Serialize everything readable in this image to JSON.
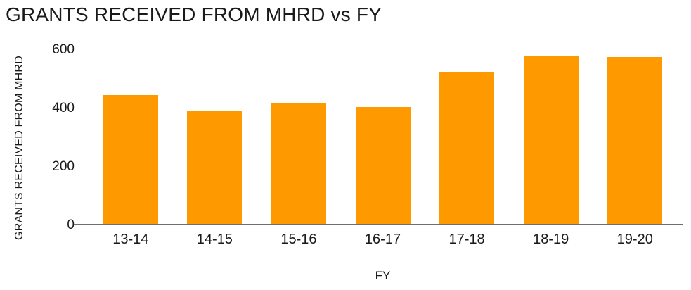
{
  "chart": {
    "title": "GRANTS RECEIVED FROM MHRD vs FY",
    "xlabel": "FY",
    "ylabel": "GRANTS RECEIVED FROM MHRD"
  },
  "chart_data": {
    "type": "bar",
    "title": "GRANTS RECEIVED FROM MHRD vs FY",
    "xlabel": "FY",
    "ylabel": "GRANTS RECEIVED FROM MHRD",
    "categories": [
      "13-14",
      "14-15",
      "15-16",
      "16-17",
      "17-18",
      "18-19",
      "19-20"
    ],
    "values": [
      445,
      390,
      420,
      405,
      525,
      580,
      575
    ],
    "ylim": [
      0,
      600
    ],
    "yticks": [
      0,
      200,
      400,
      600
    ],
    "grid": false,
    "legend": "none",
    "bar_color": "#FF9900",
    "axis_line_color": "#6E6E6E",
    "text_color": "#1A1A1A"
  }
}
